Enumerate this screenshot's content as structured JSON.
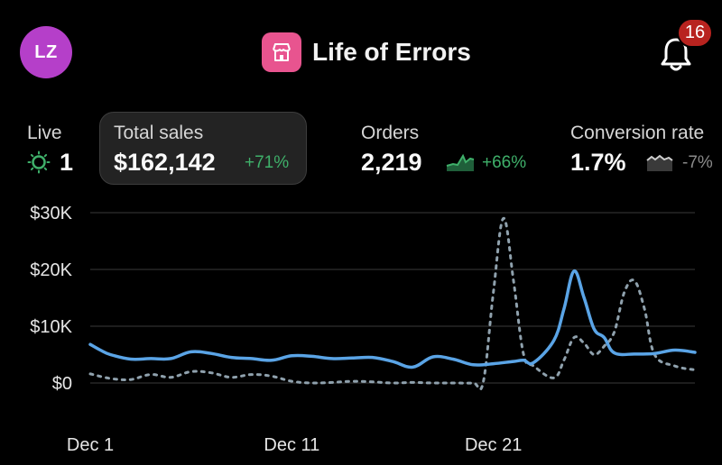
{
  "header": {
    "avatar_initials": "LZ",
    "store_name": "Life of Errors",
    "notification_count": "16",
    "avatar_color": "#b53fc9",
    "store_icon_color": "#e8548f",
    "badge_color": "#b8231f"
  },
  "metrics": {
    "live": {
      "label": "Live",
      "value": "1",
      "icon": "live-pulse-icon"
    },
    "total_sales": {
      "label": "Total sales",
      "value": "$162,142",
      "delta": "+71%",
      "selected": true
    },
    "orders": {
      "label": "Orders",
      "value": "2,219",
      "delta": "+66%",
      "trend_icon": "sparkline-up-icon"
    },
    "conversion_rate": {
      "label": "Conversion rate",
      "value": "1.7%",
      "delta": "-7%",
      "trend_icon": "sparkline-down-icon"
    }
  },
  "colors": {
    "current_series": "#5aa4e6",
    "comparison_series": "#8fa1ad",
    "positive": "#3fb06a",
    "negative": "#8a8a8a"
  },
  "chart_data": {
    "type": "line",
    "x_tick_labels": [
      "Dec 1",
      "Dec 11",
      "Dec 21"
    ],
    "x_tick_days": [
      1,
      11,
      21
    ],
    "y_tick_labels": [
      "$30K",
      "$20K",
      "$10K",
      "$0"
    ],
    "y_tick_values": [
      30000,
      20000,
      10000,
      0
    ],
    "ylim": [
      0,
      30000
    ],
    "xlim": [
      1,
      31
    ],
    "grid": true,
    "series": [
      {
        "style": "solid",
        "x": [
          1,
          1.5,
          2,
          3,
          4,
          5,
          6,
          7,
          8,
          9,
          10,
          11,
          12,
          13,
          14,
          15,
          16,
          17,
          18,
          19,
          20,
          21,
          22,
          22.5,
          23,
          24,
          24.5,
          25,
          25.5,
          26,
          26.5,
          27,
          28,
          29,
          30,
          31
        ],
        "y": [
          6800,
          5800,
          5000,
          4200,
          4300,
          4300,
          5500,
          5200,
          4500,
          4300,
          4000,
          4800,
          4700,
          4300,
          4400,
          4500,
          3800,
          2800,
          4600,
          4200,
          3200,
          3400,
          3800,
          4000,
          3600,
          7500,
          13000,
          19700,
          15000,
          9500,
          8000,
          5300,
          5100,
          5200,
          5800,
          5400
        ]
      },
      {
        "style": "dashed",
        "x": [
          1,
          2,
          3,
          4,
          5,
          6,
          7,
          8,
          9,
          10,
          11,
          12,
          13,
          14,
          15,
          16,
          17,
          18,
          19,
          20,
          20.5,
          21,
          21.5,
          22,
          22.5,
          23,
          24,
          24.5,
          25,
          25.5,
          26,
          26.5,
          27,
          27.5,
          28,
          28.5,
          29,
          30,
          31
        ],
        "y": [
          1600,
          800,
          600,
          1500,
          1000,
          2000,
          1800,
          1000,
          1500,
          1200,
          300,
          0,
          100,
          300,
          200,
          0,
          100,
          0,
          0,
          0,
          200,
          16000,
          29000,
          18000,
          5000,
          3000,
          900,
          4000,
          8000,
          7000,
          5000,
          6500,
          9000,
          16000,
          18000,
          13000,
          5000,
          3000,
          2300
        ]
      }
    ]
  }
}
